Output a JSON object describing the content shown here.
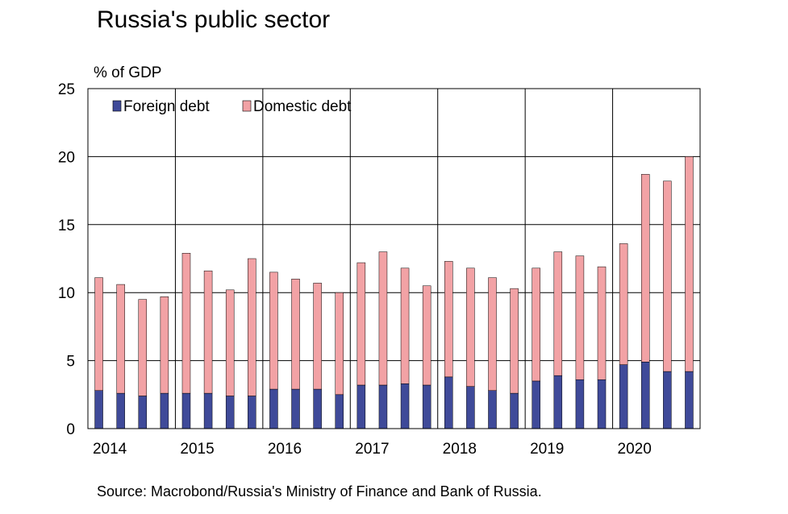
{
  "title": "Russia's public sector",
  "source": "Source: Macrobond/Russia's Ministry of Finance and Bank of Russia.",
  "chart_data": {
    "type": "bar",
    "stacked": true,
    "ylabel": "% of GDP",
    "ylim": [
      0,
      25
    ],
    "yticks": [
      0,
      5,
      10,
      15,
      20,
      25
    ],
    "grid": true,
    "legend_position": "top-left",
    "x_tick_labels": [
      "2014",
      "2015",
      "2016",
      "2017",
      "2018",
      "2019",
      "2020"
    ],
    "colors": {
      "foreign": "#3f4a99",
      "domestic": "#f2a2a5"
    },
    "series": [
      {
        "name": "Foreign debt",
        "values": [
          2.8,
          2.6,
          2.4,
          2.6,
          2.6,
          2.6,
          2.4,
          2.4,
          2.9,
          2.9,
          2.9,
          2.5,
          3.2,
          3.2,
          3.3,
          3.2,
          3.8,
          3.1,
          2.8,
          2.6,
          3.5,
          3.9,
          3.6,
          3.6,
          4.7,
          4.9,
          4.2,
          4.2
        ]
      },
      {
        "name": "Domestic debt",
        "values": [
          8.3,
          8.0,
          7.1,
          7.1,
          10.3,
          9.0,
          7.8,
          10.1,
          8.6,
          8.1,
          7.8,
          7.5,
          9.0,
          9.8,
          8.5,
          7.3,
          8.5,
          8.7,
          8.3,
          7.7,
          8.3,
          9.1,
          9.1,
          8.3,
          8.9,
          13.8,
          14.0,
          15.8
        ]
      }
    ]
  }
}
